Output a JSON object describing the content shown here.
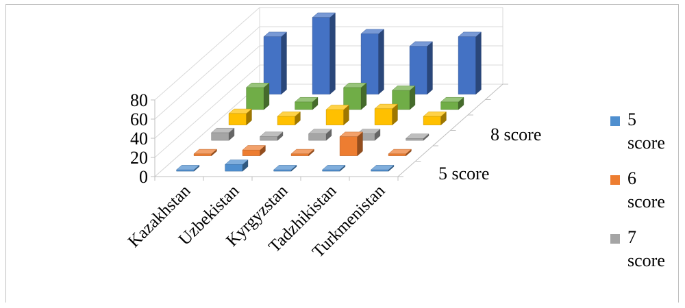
{
  "chart_data": {
    "type": "bar",
    "subtype": "3d-column",
    "categories": [
      "Kazakhstan",
      "Uzbekistan",
      "Kyrgyzstan",
      "Tadzhikistan",
      "Turkmenistan"
    ],
    "series": [
      {
        "name": "5 score",
        "color": "#4f8fcf",
        "values": [
          1,
          7,
          1,
          1,
          1
        ]
      },
      {
        "name": "6 score",
        "color": "#ed7d31",
        "values": [
          2,
          6,
          2,
          20,
          2
        ]
      },
      {
        "name": "7 score",
        "color": "#a5a5a5",
        "values": [
          8,
          4,
          7,
          7,
          2
        ]
      },
      {
        "name": "8 score",
        "color": "#ffc000",
        "values": [
          12,
          9,
          16,
          17,
          9
        ]
      },
      {
        "name": "",
        "color": "#70ad47",
        "values": [
          23,
          8,
          23,
          20,
          8
        ]
      },
      {
        "name": "",
        "color": "#4472c4",
        "values": [
          60,
          80,
          63,
          50,
          60
        ]
      }
    ],
    "depth_labels": [
      "5 score",
      "8 score"
    ],
    "legend_entries": [
      {
        "color": "#4f8fcf",
        "number": "5",
        "text": "score"
      },
      {
        "color": "#ed7d31",
        "number": "6",
        "text": "score"
      },
      {
        "color": "#a5a5a5",
        "number": "7",
        "text": "score"
      }
    ],
    "yticks": [
      "0",
      "20",
      "40",
      "60",
      "80"
    ],
    "ylim": [
      0,
      80
    ],
    "grid": true,
    "legend_position": "right"
  }
}
